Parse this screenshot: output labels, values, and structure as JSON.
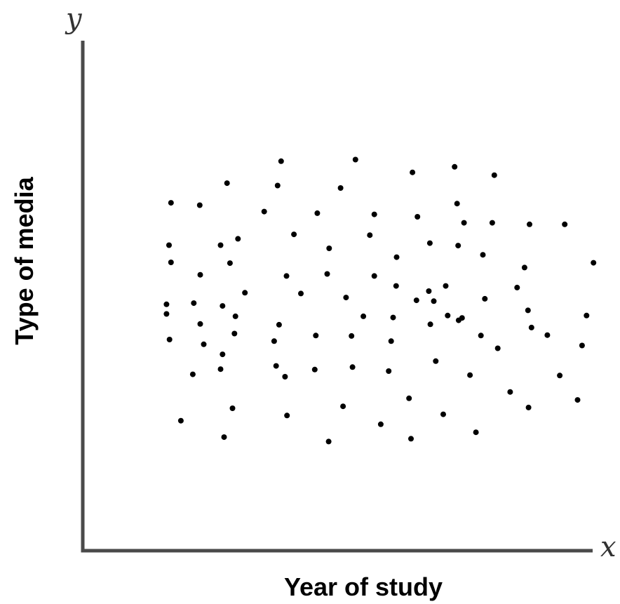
{
  "chart_data": {
    "type": "scatter",
    "title": "",
    "xlabel": "Year of study",
    "ylabel": "Type of media",
    "x_axis_symbol": "x",
    "y_axis_symbol": "y",
    "xlim": [
      0,
      100
    ],
    "ylim": [
      0,
      100
    ],
    "grid": false,
    "legend": false,
    "point_color": "#000000",
    "axis_color": "#4a4a4a",
    "points": [
      {
        "x": 14.4,
        "y": 74.2
      },
      {
        "x": 20.2,
        "y": 73.6
      },
      {
        "x": 25.7,
        "y": 79.1
      },
      {
        "x": 36.6,
        "y": 84.6
      },
      {
        "x": 35.9,
        "y": 78.5
      },
      {
        "x": 51.6,
        "y": 85.0
      },
      {
        "x": 48.6,
        "y": 77.9
      },
      {
        "x": 63.1,
        "y": 81.8
      },
      {
        "x": 71.6,
        "y": 83.2
      },
      {
        "x": 79.6,
        "y": 81.1
      },
      {
        "x": 33.2,
        "y": 72.0
      },
      {
        "x": 43.9,
        "y": 71.6
      },
      {
        "x": 55.4,
        "y": 71.3
      },
      {
        "x": 64.1,
        "y": 70.7
      },
      {
        "x": 72.1,
        "y": 74.0
      },
      {
        "x": 73.5,
        "y": 69.2
      },
      {
        "x": 79.2,
        "y": 69.2
      },
      {
        "x": 86.7,
        "y": 68.8
      },
      {
        "x": 93.8,
        "y": 68.8
      },
      {
        "x": 14.0,
        "y": 63.6
      },
      {
        "x": 24.4,
        "y": 63.6
      },
      {
        "x": 27.9,
        "y": 65.2
      },
      {
        "x": 39.2,
        "y": 66.3
      },
      {
        "x": 46.3,
        "y": 62.8
      },
      {
        "x": 54.5,
        "y": 66.1
      },
      {
        "x": 59.9,
        "y": 60.6
      },
      {
        "x": 66.6,
        "y": 64.1
      },
      {
        "x": 72.3,
        "y": 63.5
      },
      {
        "x": 77.3,
        "y": 61.2
      },
      {
        "x": 14.4,
        "y": 59.3
      },
      {
        "x": 26.3,
        "y": 59.1
      },
      {
        "x": 20.3,
        "y": 56.2
      },
      {
        "x": 37.7,
        "y": 55.9
      },
      {
        "x": 45.9,
        "y": 56.4
      },
      {
        "x": 55.4,
        "y": 55.9
      },
      {
        "x": 59.8,
        "y": 53.4
      },
      {
        "x": 69.8,
        "y": 53.4
      },
      {
        "x": 66.4,
        "y": 52.1
      },
      {
        "x": 85.7,
        "y": 58.0
      },
      {
        "x": 99.6,
        "y": 59.2
      },
      {
        "x": 29.3,
        "y": 51.7
      },
      {
        "x": 40.6,
        "y": 51.5
      },
      {
        "x": 49.7,
        "y": 50.5
      },
      {
        "x": 63.9,
        "y": 49.8
      },
      {
        "x": 67.4,
        "y": 49.6
      },
      {
        "x": 77.7,
        "y": 50.2
      },
      {
        "x": 84.2,
        "y": 53.0
      },
      {
        "x": 13.5,
        "y": 48.8
      },
      {
        "x": 19.0,
        "y": 49.1
      },
      {
        "x": 24.8,
        "y": 48.4
      },
      {
        "x": 13.5,
        "y": 46.4
      },
      {
        "x": 27.4,
        "y": 45.8
      },
      {
        "x": 53.2,
        "y": 45.8
      },
      {
        "x": 59.2,
        "y": 45.5
      },
      {
        "x": 70.2,
        "y": 46.0
      },
      {
        "x": 73.1,
        "y": 45.4
      },
      {
        "x": 86.4,
        "y": 47.3
      },
      {
        "x": 98.2,
        "y": 46.0
      },
      {
        "x": 20.3,
        "y": 43.9
      },
      {
        "x": 36.2,
        "y": 43.7
      },
      {
        "x": 66.7,
        "y": 43.8
      },
      {
        "x": 72.4,
        "y": 44.8
      },
      {
        "x": 87.1,
        "y": 43.0
      },
      {
        "x": 14.1,
        "y": 40.0
      },
      {
        "x": 21.0,
        "y": 38.8
      },
      {
        "x": 27.2,
        "y": 41.5
      },
      {
        "x": 35.2,
        "y": 39.6
      },
      {
        "x": 43.6,
        "y": 41.0
      },
      {
        "x": 50.8,
        "y": 40.9
      },
      {
        "x": 58.8,
        "y": 39.6
      },
      {
        "x": 76.9,
        "y": 41.0
      },
      {
        "x": 80.3,
        "y": 37.8
      },
      {
        "x": 90.3,
        "y": 41.1
      },
      {
        "x": 97.3,
        "y": 38.5
      },
      {
        "x": 24.8,
        "y": 36.3
      },
      {
        "x": 18.8,
        "y": 31.3
      },
      {
        "x": 24.4,
        "y": 32.6
      },
      {
        "x": 35.6,
        "y": 33.4
      },
      {
        "x": 37.4,
        "y": 30.7
      },
      {
        "x": 43.4,
        "y": 32.5
      },
      {
        "x": 51.0,
        "y": 33.1
      },
      {
        "x": 58.3,
        "y": 32.1
      },
      {
        "x": 67.8,
        "y": 34.6
      },
      {
        "x": 74.7,
        "y": 31.1
      },
      {
        "x": 92.8,
        "y": 31.0
      },
      {
        "x": 82.8,
        "y": 26.9
      },
      {
        "x": 62.4,
        "y": 25.3
      },
      {
        "x": 86.5,
        "y": 23.0
      },
      {
        "x": 96.4,
        "y": 24.9
      },
      {
        "x": 16.4,
        "y": 19.7
      },
      {
        "x": 26.8,
        "y": 22.8
      },
      {
        "x": 37.8,
        "y": 21.0
      },
      {
        "x": 49.1,
        "y": 23.3
      },
      {
        "x": 56.7,
        "y": 18.8
      },
      {
        "x": 69.3,
        "y": 21.3
      },
      {
        "x": 25.1,
        "y": 15.6
      },
      {
        "x": 46.2,
        "y": 14.5
      },
      {
        "x": 62.8,
        "y": 15.2
      },
      {
        "x": 75.9,
        "y": 16.8
      }
    ]
  }
}
